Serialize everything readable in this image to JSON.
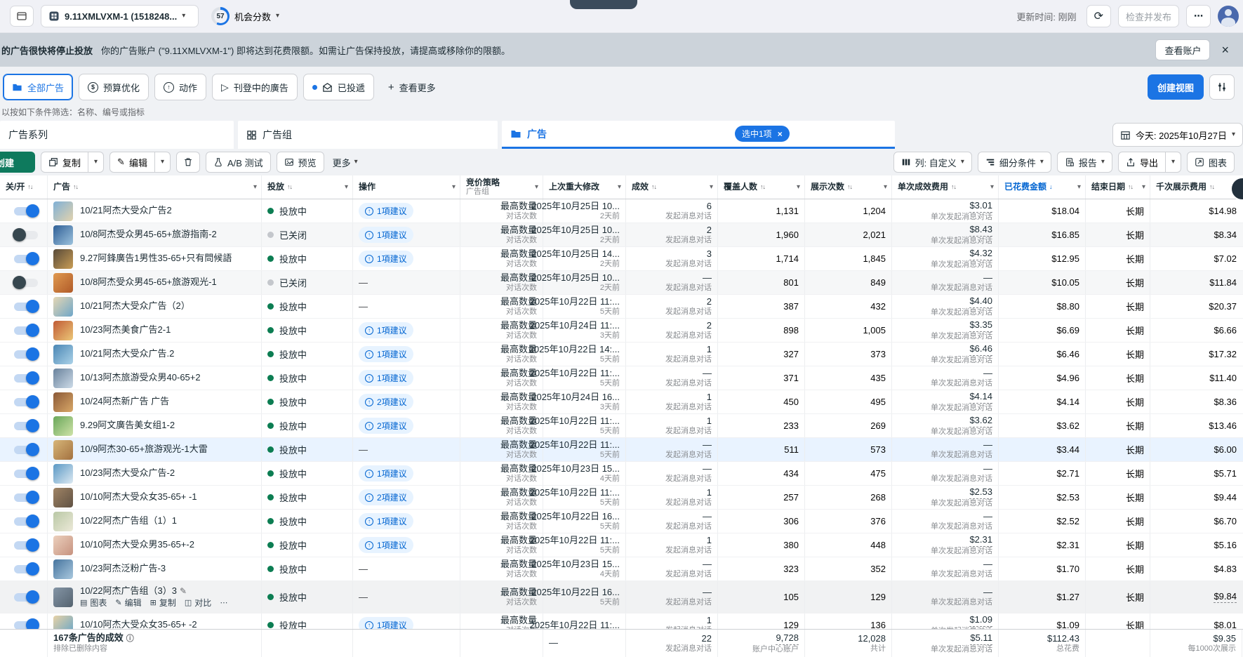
{
  "colors": {
    "accent": "#1b74e4",
    "link": "#0064d1",
    "green_button": "#0e7a5d",
    "banner_bg": "#ccd3da",
    "page_bg": "#f0f2f5",
    "status_on": "#0c7d52",
    "status_off": "#c4c7cc",
    "selected_row": "#e9f3ff",
    "sorted_column": "#0064d1"
  },
  "icons": {
    "caret-down": "▾",
    "sort": "↑↓",
    "sort-down": "↓",
    "arrow-up": "↑",
    "dash": "—",
    "pencil": "✎",
    "dots": "⋯",
    "close": "×",
    "refresh": "⟳",
    "plus": "+",
    "send": "▷",
    "info": "ⓘ",
    "dollar": "$",
    "chart-mini": "▤",
    "copy-mini": "⊞",
    "compare-mini": "◫"
  },
  "topbar": {
    "account": "9.11XMLVXM-1 (1518248...",
    "score": "57",
    "score_label": "机会分数",
    "updated": "更新时间: 刚刚",
    "review_publish": "检查并发布",
    "more": "⋯"
  },
  "banner": {
    "title": "的广告很快将停止投放",
    "body": "你的广告账户 (\"9.11XMLVXM-1\") 即将达到花费限额。如需让广告保持投放，请提高或移除你的限额。",
    "view_account": "查看账户"
  },
  "filter_tabs": {
    "items": [
      {
        "label": "全部广告",
        "icon": "folder-icon",
        "selected": true
      },
      {
        "label": "预算优化",
        "icon": "dollar-circle-icon"
      },
      {
        "label": "动作",
        "icon": "arrow-up-circle-icon"
      },
      {
        "label": "刊登中的廣告",
        "icon": "send-icon"
      },
      {
        "label": "已投遞",
        "icon": "envelope-icon",
        "dot": true
      },
      {
        "label": "查看更多",
        "icon": "plus-icon",
        "plain": true
      }
    ],
    "create_view": "创建视图"
  },
  "filter_hint": "以按如下条件筛选：名称、编号或指标",
  "level_tabs": {
    "campaigns": "广告系列",
    "adsets": "广告组",
    "ads": "广告",
    "selected_badge": "选中1项",
    "date_label": "今天: 2025年10月27日"
  },
  "toolbar": {
    "create": "创建",
    "copy": "复制",
    "edit": "编辑",
    "ab_test": "A/B 测试",
    "preview": "预览",
    "more": "更多",
    "columns": "列: 自定义",
    "breakdown": "细分条件",
    "report": "报告",
    "export": "导出",
    "chart": "图表"
  },
  "table": {
    "columns": [
      {
        "key": "toggle",
        "label": "关/开",
        "sort": "both",
        "caret": false
      },
      {
        "key": "name",
        "label": "广告",
        "sort": "both",
        "caret": true
      },
      {
        "key": "status",
        "label": "投放",
        "sort": "both",
        "caret": true
      },
      {
        "key": "action",
        "label": "操作",
        "sort": null,
        "caret": true
      },
      {
        "key": "bid",
        "label": "竞价策略",
        "sub": "广告组",
        "sort": null,
        "caret": true
      },
      {
        "key": "modified",
        "label": "上次重大修改",
        "sort": null,
        "caret": true
      },
      {
        "key": "result",
        "label": "成效",
        "sort": "both",
        "caret": true
      },
      {
        "key": "reach",
        "label": "覆盖人数",
        "sort": "both",
        "caret": true
      },
      {
        "key": "impr",
        "label": "展示次数",
        "sort": "both",
        "caret": true
      },
      {
        "key": "cpr",
        "label": "单次成效费用",
        "sort": "both",
        "caret": true
      },
      {
        "key": "spent",
        "label": "已花费金额",
        "sort": "down",
        "caret": true,
        "active": true
      },
      {
        "key": "end",
        "label": "结束日期",
        "sort": "both",
        "caret": true
      },
      {
        "key": "cpm",
        "label": "千次展示费用",
        "sort": "both",
        "caret": true
      }
    ],
    "defaults": {
      "bid": "最高数量",
      "bid_sub": "对话次数",
      "result_sub": "发起消息对话",
      "cpr_sub": "单次发起消息对话",
      "end": "长期"
    },
    "rows": [
      {
        "name": "10/21阿杰大受众广告2",
        "thumb": [
          "#7fb0d6",
          "#e3d3ae"
        ],
        "toggle": "on",
        "status": "投放中",
        "suggestion": "1項建议",
        "date": "2025年10月25日 10...",
        "ago": "2天前",
        "result": "6",
        "reach": "1,131",
        "impressions": "1,204",
        "cpr": "$3.01",
        "spent": "$18.04",
        "cpm": "$14.98"
      },
      {
        "name": "10/8阿杰受众男45-65+旅游指南-2",
        "thumb": [
          "#2f5f96",
          "#9cc2dd"
        ],
        "toggle": "off",
        "status": "已关闭",
        "closed": true,
        "suggestion": "1項建议",
        "date": "2025年10月25日 10...",
        "ago": "2天前",
        "result": "2",
        "reach": "1,960",
        "impressions": "2,021",
        "cpr": "$8.43",
        "spent": "$16.85",
        "cpm": "$8.34"
      },
      {
        "name": "9.27阿鋒廣告1男性35-65+只有問候語",
        "thumb": [
          "#584a39",
          "#c99d55"
        ],
        "toggle": "on",
        "status": "投放中",
        "suggestion": "1項建议",
        "date": "2025年10月25日 14...",
        "ago": "2天前",
        "result": "3",
        "reach": "1,714",
        "impressions": "1,845",
        "cpr": "$4.32",
        "spent": "$12.95",
        "cpm": "$7.02"
      },
      {
        "name": "10/8阿杰受众男45-65+旅游观光-1",
        "thumb": [
          "#e09a50",
          "#b05a28"
        ],
        "toggle": "off",
        "status": "已关闭",
        "closed": true,
        "suggestion": null,
        "date": "2025年10月25日 10...",
        "ago": "2天前",
        "result": "—",
        "reach": "801",
        "impressions": "849",
        "cpr": "—",
        "spent": "$10.05",
        "cpm": "$11.84"
      },
      {
        "name": "10/21阿杰大受众广告（2）",
        "thumb": [
          "#e6d7b4",
          "#6ea6c8"
        ],
        "toggle": "on",
        "status": "投放中",
        "suggestion": null,
        "date": "2025年10月22日 11:...",
        "ago": "5天前",
        "result": "2",
        "reach": "387",
        "impressions": "432",
        "cpr": "$4.40",
        "spent": "$8.80",
        "cpm": "$20.37"
      },
      {
        "name": "10/23阿杰美食广告2-1",
        "thumb": [
          "#c05a35",
          "#ecc878"
        ],
        "toggle": "on",
        "status": "投放中",
        "suggestion": "1項建议",
        "date": "2025年10月24日 11:...",
        "ago": "3天前",
        "result": "2",
        "reach": "898",
        "impressions": "1,005",
        "cpr": "$3.35",
        "spent": "$6.69",
        "cpm": "$6.66"
      },
      {
        "name": "10/21阿杰大受众广告.2",
        "thumb": [
          "#4a86b4",
          "#abd2e8"
        ],
        "toggle": "on",
        "status": "投放中",
        "suggestion": "1項建议",
        "date": "2025年10月22日 14:...",
        "ago": "5天前",
        "result": "1",
        "reach": "327",
        "impressions": "373",
        "cpr": "$6.46",
        "spent": "$6.46",
        "cpm": "$17.32"
      },
      {
        "name": "10/13阿杰旅游受众男40-65+2",
        "thumb": [
          "#69829c",
          "#cddbe8"
        ],
        "toggle": "on",
        "status": "投放中",
        "suggestion": "1項建议",
        "date": "2025年10月22日 11:...",
        "ago": "5天前",
        "result": "—",
        "reach": "371",
        "impressions": "435",
        "cpr": "—",
        "spent": "$4.96",
        "cpm": "$11.40"
      },
      {
        "name": "10/24阿杰新广告 广告",
        "thumb": [
          "#8a5836",
          "#d9a868"
        ],
        "toggle": "on",
        "status": "投放中",
        "suggestion": "2項建议",
        "date": "2025年10月24日 16...",
        "ago": "3天前",
        "result": "1",
        "reach": "450",
        "impressions": "495",
        "cpr": "$4.14",
        "spent": "$4.14",
        "cpm": "$8.36"
      },
      {
        "name": "9.29阿文廣告美女组1-2",
        "thumb": [
          "#69a659",
          "#cfe3a8"
        ],
        "toggle": "on",
        "status": "投放中",
        "suggestion": "2項建议",
        "date": "2025年10月22日 11:...",
        "ago": "5天前",
        "result": "1",
        "reach": "233",
        "impressions": "269",
        "cpr": "$3.62",
        "spent": "$3.62",
        "cpm": "$13.46"
      },
      {
        "name": "10/9阿杰30-65+旅游观光-1大雷",
        "thumb": [
          "#d7b679",
          "#a3713f"
        ],
        "toggle": "on",
        "status": "投放中",
        "highlight": true,
        "suggestion": null,
        "date": "2025年10月22日 11:...",
        "ago": "5天前",
        "result": "—",
        "reach": "511",
        "impressions": "573",
        "cpr": "—",
        "spent": "$3.44",
        "cpm": "$6.00"
      },
      {
        "name": "10/23阿杰大受众广告-2",
        "thumb": [
          "#5a98c4",
          "#dce9f2"
        ],
        "toggle": "on",
        "status": "投放中",
        "suggestion": "1項建议",
        "date": "2025年10月23日 15...",
        "ago": "4天前",
        "result": "—",
        "reach": "434",
        "impressions": "475",
        "cpr": "—",
        "spent": "$2.71",
        "cpm": "$5.71"
      },
      {
        "name": "10/10阿杰大受众女35-65+ -1",
        "thumb": [
          "#a08465",
          "#5f5143"
        ],
        "toggle": "on",
        "status": "投放中",
        "suggestion": "2項建议",
        "date": "2025年10月22日 11:...",
        "ago": "5天前",
        "result": "1",
        "reach": "257",
        "impressions": "268",
        "cpr": "$2.53",
        "spent": "$2.53",
        "cpm": "$9.44"
      },
      {
        "name": "10/22阿杰广告组（1）1",
        "thumb": [
          "#b9c8a5",
          "#ece9d8"
        ],
        "toggle": "on",
        "status": "投放中",
        "suggestion": "1項建议",
        "date": "2025年10月22日 16...",
        "ago": "5天前",
        "result": "—",
        "reach": "306",
        "impressions": "376",
        "cpr": "—",
        "spent": "$2.52",
        "cpm": "$6.70"
      },
      {
        "name": "10/10阿杰大受众男35-65+-2",
        "thumb": [
          "#ecd0bd",
          "#c6927f"
        ],
        "toggle": "on",
        "status": "投放中",
        "suggestion": "1項建议",
        "date": "2025年10月22日 11:...",
        "ago": "5天前",
        "result": "1",
        "reach": "380",
        "impressions": "448",
        "cpr": "$2.31",
        "spent": "$2.31",
        "cpm": "$5.16"
      },
      {
        "name": "10/23阿杰泛粉广告-3",
        "thumb": [
          "#46749e",
          "#a9c8de"
        ],
        "toggle": "on",
        "status": "投放中",
        "suggestion": null,
        "date": "2025年10月23日 15...",
        "ago": "4天前",
        "result": "—",
        "reach": "323",
        "impressions": "352",
        "cpr": "—",
        "spent": "$1.70",
        "cpm": "$4.83"
      },
      {
        "name": "10/22阿杰广告组（3）3",
        "thumb": [
          "#8495a6",
          "#55636f"
        ],
        "toggle": "on",
        "status": "投放中",
        "hover": true,
        "edit": true,
        "actions": [
          {
            "icon": "chart-mini",
            "label": "图表"
          },
          {
            "icon": "pencil",
            "label": "编辑"
          },
          {
            "icon": "copy-mini",
            "label": "复制"
          },
          {
            "icon": "compare-mini",
            "label": "对比"
          },
          {
            "icon": "dots",
            "label": ""
          }
        ],
        "suggestion": null,
        "date": "2025年10月22日 16...",
        "ago": "5天前",
        "result": "—",
        "reach": "105",
        "impressions": "129",
        "cpr": "—",
        "spent": "$1.27",
        "cpm": "$9.84",
        "cpm_underline": true
      },
      {
        "name": "10/10阿杰大受众女35-65+ -2",
        "thumb": [
          "#e8d2a6",
          "#64a4c8"
        ],
        "toggle": "on",
        "status": "投放中",
        "suggestion": "1項建议",
        "date": "2025年10月22日 11:...",
        "ago": null,
        "result": "1",
        "reach": "129",
        "impressions": "136",
        "cpr": "$1.09",
        "spent": "$1.09",
        "cpm": "$8.01"
      }
    ],
    "footer": {
      "title": "167条广告的成效",
      "note": "排除已删除内容",
      "modified": "—",
      "result": "22",
      "result_sub": "发起消息对话",
      "reach": "9,728",
      "reach_sub": "账户中心账户",
      "impressions": "12,028",
      "impressions_sub": "共计",
      "cpr": "$5.11",
      "cpr_sub": "单次发起消息对话",
      "spent": "$112.43",
      "spent_sub": "总花费",
      "cpm": "$9.35",
      "cpm_sub": "每1000次展示"
    }
  }
}
